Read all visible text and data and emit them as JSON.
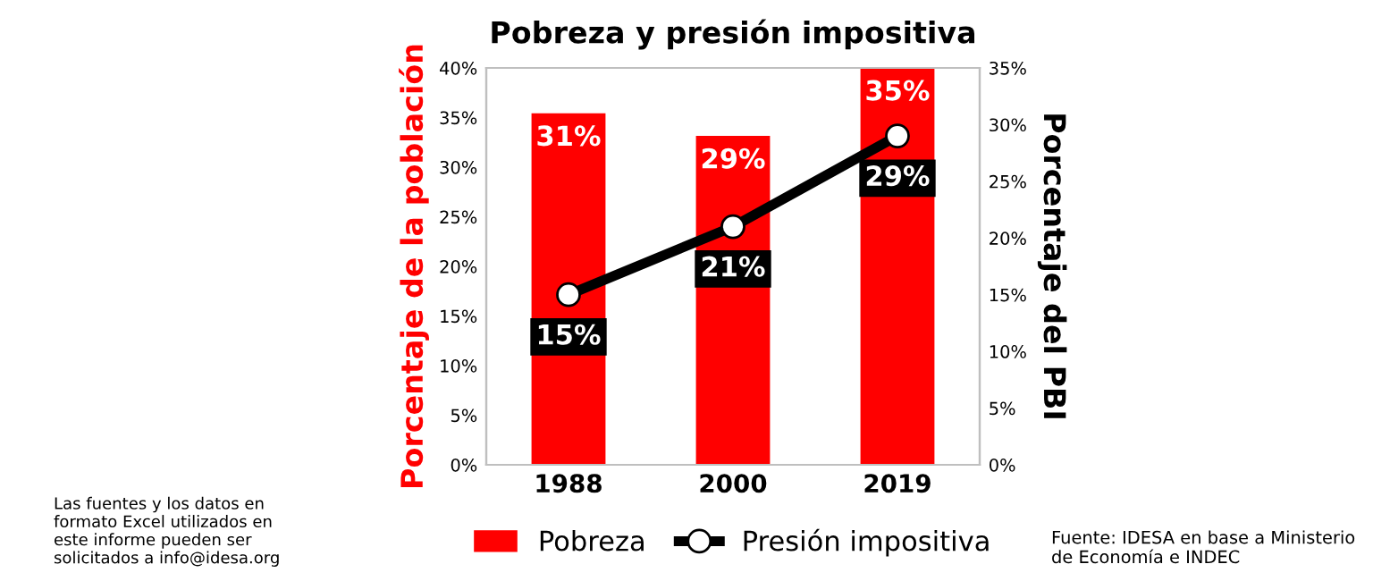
{
  "chart_data": {
    "type": "bar",
    "title": "Pobreza y presión impositiva",
    "categories": [
      "1988",
      "2000",
      "2019"
    ],
    "series": [
      {
        "name": "Pobreza",
        "color": "#ff0000",
        "axis": "y2",
        "values": [
          31,
          29,
          35
        ],
        "value_labels": [
          "31%",
          "29%",
          "35%"
        ]
      },
      {
        "name": "Presión impositiva",
        "type": "line",
        "color": "#000000",
        "axis": "y2",
        "marker": "circle",
        "values": [
          15,
          21,
          29
        ],
        "value_labels": [
          "15%",
          "21%",
          "29%"
        ]
      }
    ],
    "ylabel": "Porcentaje de la población",
    "y2label": "Porcentaje del PBI",
    "ylim": [
      0,
      40
    ],
    "yticks": [
      {
        "value": 0,
        "label": "0%"
      },
      {
        "value": 5,
        "label": "5%"
      },
      {
        "value": 10,
        "label": "10%"
      },
      {
        "value": 15,
        "label": "15%"
      },
      {
        "value": 20,
        "label": "20%"
      },
      {
        "value": 25,
        "label": "25%"
      },
      {
        "value": 30,
        "label": "30%"
      },
      {
        "value": 35,
        "label": "35%"
      },
      {
        "value": 40,
        "label": "40%"
      }
    ],
    "y2lim": [
      0,
      35
    ],
    "y2ticks": [
      {
        "value": 0,
        "label": "0%"
      },
      {
        "value": 5,
        "label": "5%"
      },
      {
        "value": 10,
        "label": "10%"
      },
      {
        "value": 15,
        "label": "15%"
      },
      {
        "value": 20,
        "label": "20%"
      },
      {
        "value": 25,
        "label": "25%"
      },
      {
        "value": 30,
        "label": "30%"
      },
      {
        "value": 35,
        "label": "35%"
      }
    ],
    "legend": "bottom",
    "grid": false,
    "annotations": [
      "Las fuentes y los datos en formato Excel utilizados en este informe pueden ser solicitados a info@idesa.org",
      "Fuente: IDESA en base a Ministerio de Economía e INDEC"
    ]
  }
}
